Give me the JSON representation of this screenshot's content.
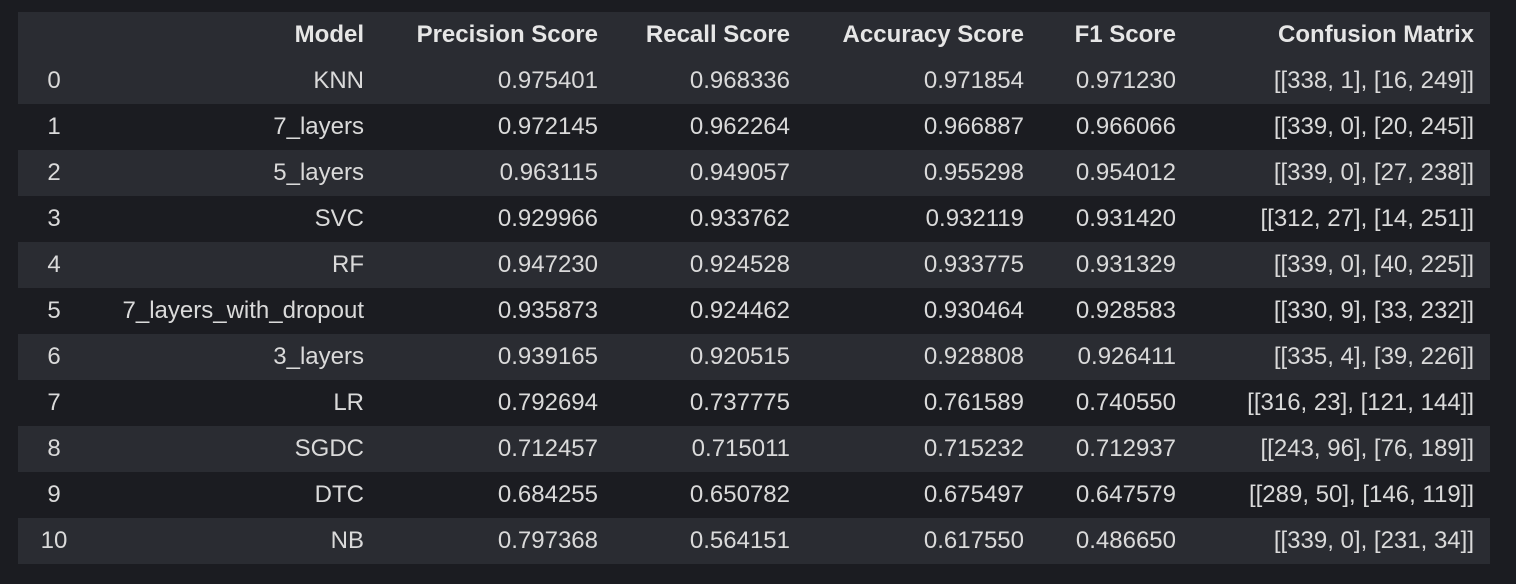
{
  "table": {
    "headers": [
      "",
      "Model",
      "Precision Score",
      "Recall Score",
      "Accuracy Score",
      "F1 Score",
      "Confusion Matrix"
    ],
    "rows": [
      [
        "0",
        "KNN",
        "0.975401",
        "0.968336",
        "0.971854",
        "0.971230",
        "[[338, 1], [16, 249]]"
      ],
      [
        "1",
        "7_layers",
        "0.972145",
        "0.962264",
        "0.966887",
        "0.966066",
        "[[339, 0], [20, 245]]"
      ],
      [
        "2",
        "5_layers",
        "0.963115",
        "0.949057",
        "0.955298",
        "0.954012",
        "[[339, 0], [27, 238]]"
      ],
      [
        "3",
        "SVC",
        "0.929966",
        "0.933762",
        "0.932119",
        "0.931420",
        "[[312, 27], [14, 251]]"
      ],
      [
        "4",
        "RF",
        "0.947230",
        "0.924528",
        "0.933775",
        "0.931329",
        "[[339, 0], [40, 225]]"
      ],
      [
        "5",
        "7_layers_with_dropout",
        "0.935873",
        "0.924462",
        "0.930464",
        "0.928583",
        "[[330, 9], [33, 232]]"
      ],
      [
        "6",
        "3_layers",
        "0.939165",
        "0.920515",
        "0.928808",
        "0.926411",
        "[[335, 4], [39, 226]]"
      ],
      [
        "7",
        "LR",
        "0.792694",
        "0.737775",
        "0.761589",
        "0.740550",
        "[[316, 23], [121, 144]]"
      ],
      [
        "8",
        "SGDC",
        "0.712457",
        "0.715011",
        "0.715232",
        "0.712937",
        "[[243, 96], [76, 189]]"
      ],
      [
        "9",
        "DTC",
        "0.684255",
        "0.650782",
        "0.675497",
        "0.647579",
        "[[289, 50], [146, 119]]"
      ],
      [
        "10",
        "NB",
        "0.797368",
        "0.564151",
        "0.617550",
        "0.486650",
        "[[339, 0], [231, 34]]"
      ]
    ]
  }
}
